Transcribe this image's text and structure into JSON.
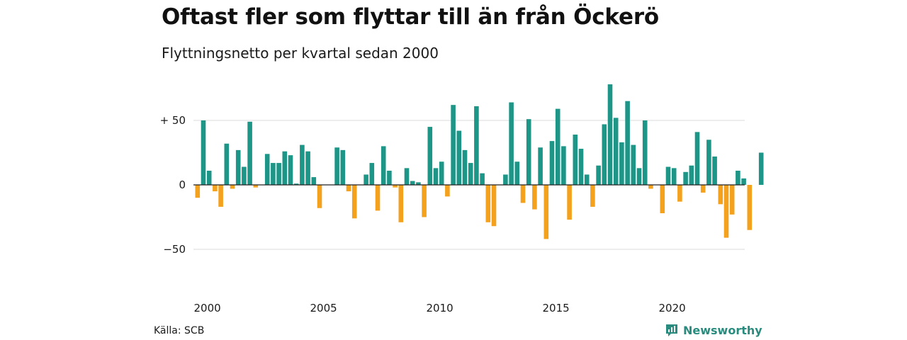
{
  "title": "Oftast fler som flyttar till än från Öckerö",
  "subtitle": "Flyttningsnetto per kvartal sedan 2000",
  "source": "Källa: SCB",
  "brand": {
    "name": "Newsworthy",
    "icon": "newsworthy-logo-icon",
    "color": "#2a8c7e"
  },
  "colors": {
    "positive": "#1e9687",
    "negative": "#f4a11d",
    "grid": "#e2e2e2",
    "zero_line": "#222222"
  },
  "chart_data": {
    "type": "bar",
    "title": "Oftast fler som flyttar till än från Öckerö",
    "subtitle": "Flyttningsnetto per kvartal sedan 2000",
    "xlabel": "",
    "ylabel": "",
    "x_start": "2000 Q1",
    "x_ticks": [
      "2000",
      "2005",
      "2010",
      "2015",
      "2020"
    ],
    "y_ticks": [
      {
        "value": 50,
        "label": "+ 50"
      },
      {
        "value": 0,
        "label": "0"
      },
      {
        "value": -50,
        "label": "−50"
      }
    ],
    "ylim": [
      -70,
      85
    ],
    "grid": true,
    "values": [
      -10,
      50,
      11,
      -5,
      -17,
      32,
      -3,
      27,
      14,
      49,
      -2,
      0,
      24,
      17,
      17,
      26,
      23,
      1,
      31,
      26,
      6,
      -18,
      0,
      0,
      29,
      27,
      -5,
      -26,
      0,
      8,
      17,
      -20,
      30,
      11,
      -2,
      -29,
      13,
      3,
      2,
      -25,
      45,
      13,
      18,
      -9,
      62,
      42,
      27,
      17,
      61,
      9,
      -29,
      -32,
      0,
      8,
      64,
      18,
      -14,
      51,
      -19,
      29,
      -42,
      34,
      59,
      30,
      -27,
      39,
      28,
      8,
      -17,
      15,
      47,
      78,
      52,
      33,
      65,
      31,
      13,
      50,
      -3,
      0,
      -22,
      14,
      13,
      -13,
      10,
      15,
      41,
      -6,
      35,
      22,
      -15,
      -41,
      -23,
      11,
      5,
      -35,
      0,
      25
    ]
  }
}
